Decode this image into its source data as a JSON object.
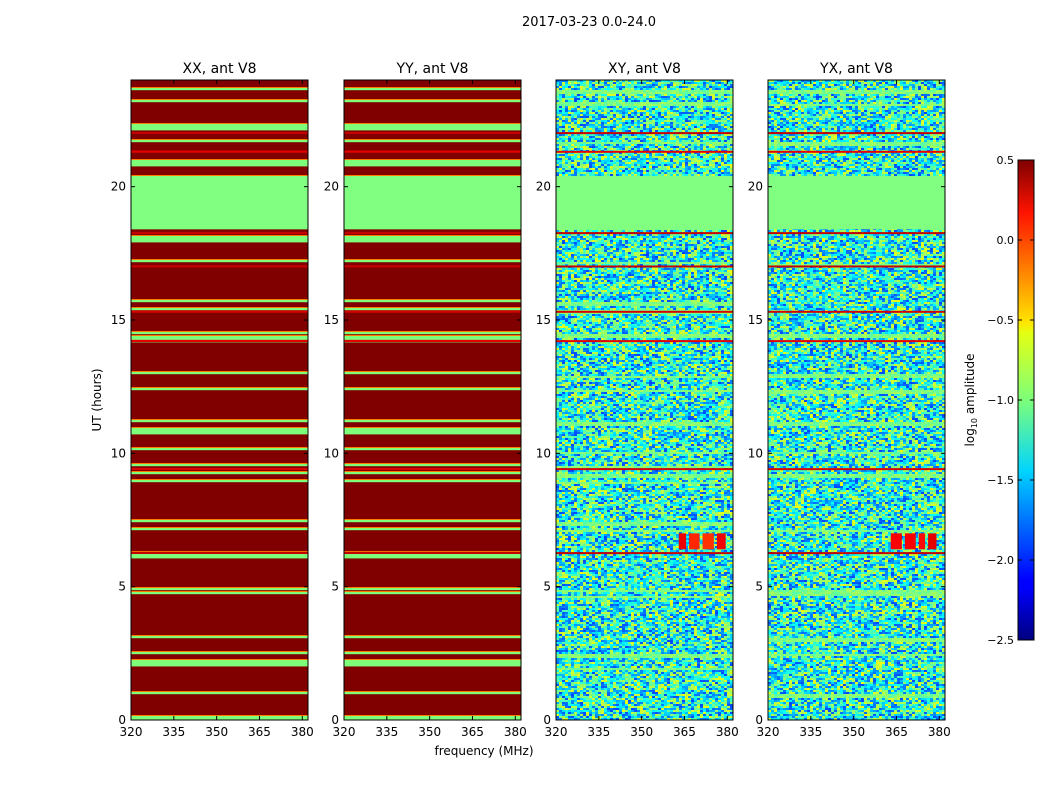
{
  "chart_data": {
    "type": "heatmap",
    "suptitle": "2017-03-23 0.0-24.0",
    "xlabel": "frequency (MHz)",
    "ylabel": "UT (hours)",
    "xlim": [
      320,
      382
    ],
    "ylim": [
      0,
      24
    ],
    "x_ticks": [
      320,
      335,
      350,
      365,
      380
    ],
    "y_ticks": [
      0,
      5,
      10,
      15,
      20
    ],
    "colormap": "jet",
    "colorbar": {
      "label": "log",
      "label_sub": "10",
      "label_rest": " amplitude",
      "range": [
        -2.5,
        0.5
      ],
      "ticks": [
        0.5,
        0.0,
        -0.5,
        -1.0,
        -1.5,
        -2.0,
        -2.5
      ],
      "tick_labels": [
        "0.5",
        "0.0",
        "−0.5",
        "−1.0",
        "−1.5",
        "−2.0",
        "−2.5"
      ]
    },
    "panels": [
      {
        "title": "XX, ant V8",
        "kind": "auto"
      },
      {
        "title": "YY, ant V8",
        "kind": "auto"
      },
      {
        "title": "XY, ant V8",
        "kind": "cross"
      },
      {
        "title": "YX, ant V8",
        "kind": "cross"
      }
    ],
    "flagged_band": {
      "ut_range": [
        18.4,
        20.4
      ],
      "value": -1.0
    },
    "red_bands": [
      {
        "ut": 18.25,
        "value": 0.3
      },
      {
        "ut": 17.0,
        "value": 0.3
      },
      {
        "ut": 15.3,
        "value": 0.25
      },
      {
        "ut": 14.2,
        "value": 0.2
      },
      {
        "ut": 9.4,
        "value": 0.25
      },
      {
        "ut": 6.25,
        "value": 0.3
      },
      {
        "ut": 22.0,
        "value": 0.3
      },
      {
        "ut": 21.3,
        "value": 0.2
      }
    ],
    "rfi_bursts": {
      "ut_range": [
        6.4,
        7.0
      ],
      "freq_range": [
        363,
        381
      ],
      "value": 0.1
    },
    "background_level": {
      "auto": 0.5,
      "cross_mean": -1.3
    }
  }
}
